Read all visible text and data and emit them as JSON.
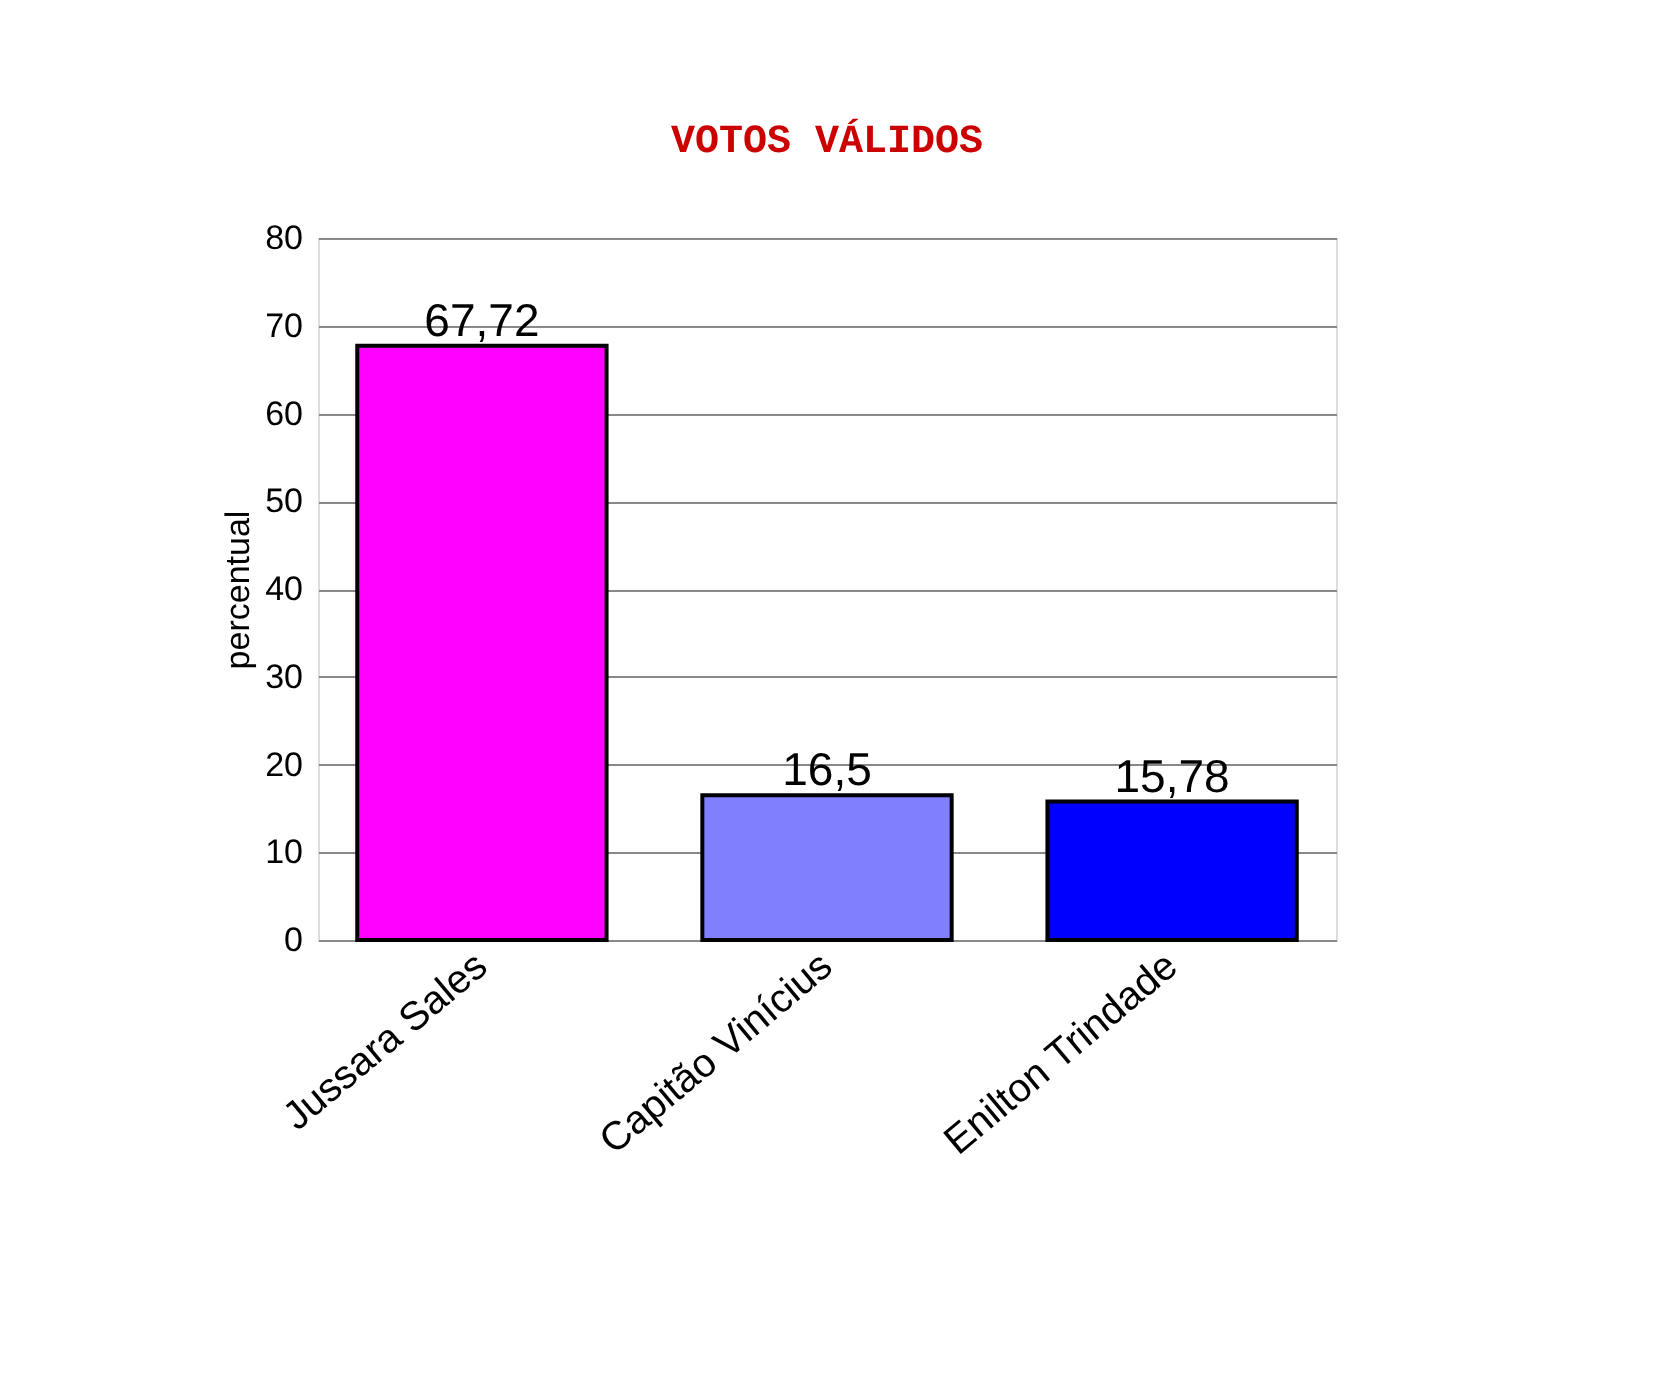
{
  "chart_data": {
    "type": "bar",
    "title": "VOTOS VÁLIDOS",
    "ylabel": "percentual",
    "categories": [
      "Jussara Sales",
      "Capitão Vinícius",
      "Enilton Trindade"
    ],
    "values": [
      67.72,
      16.5,
      15.78
    ],
    "colors": [
      "#ff00ff",
      "#8080ff",
      "#0000ff"
    ],
    "value_labels": [
      "67,72",
      "16,5",
      "15,78"
    ],
    "ylim": [
      0,
      80
    ],
    "yticks": [
      0,
      10,
      20,
      30,
      40,
      50,
      60,
      70,
      80
    ],
    "grid": "y"
  }
}
